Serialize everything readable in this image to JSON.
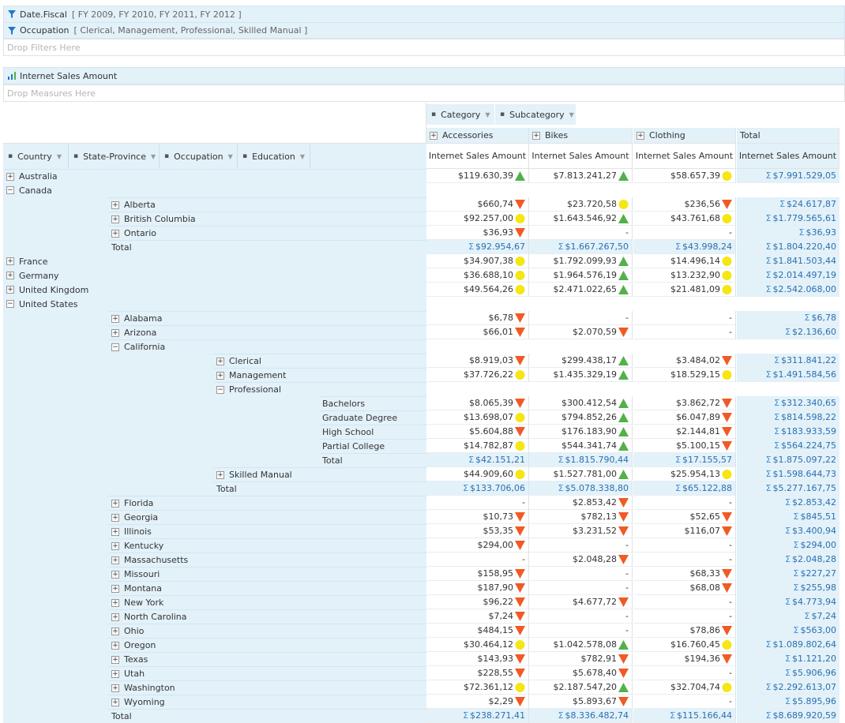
{
  "filters": [
    {
      "name": "Date.Fiscal",
      "values": "[ FY 2009, FY 2010, FY 2011, FY 2012 ]"
    },
    {
      "name": "Occupation",
      "values": "[ Clerical, Management, Professional, Skilled Manual ]"
    }
  ],
  "drop_filters": "Drop Filters Here",
  "measure": "Internet Sales Amount",
  "drop_measures": "Drop Measures Here",
  "column_fields": [
    "Category",
    "Subcategory"
  ],
  "row_fields": [
    "Country",
    "State-Province",
    "Occupation",
    "Education"
  ],
  "categories": [
    "Accessories",
    "Bikes",
    "Clothing",
    "Total"
  ],
  "measure_header": "Internet Sales Amount",
  "colors": {
    "up": "#54b04a",
    "down": "#f15a24",
    "neutral": "#f5e614",
    "header_bg": "#e3f1f9",
    "sigma": "#3c8fd8"
  },
  "rows": [
    {
      "level": 0,
      "label": "Australia",
      "btn": "+",
      "cells": [
        {
          "v": "$119.630,39",
          "i": "up"
        },
        {
          "v": "$7.813.241,27",
          "i": "up"
        },
        {
          "v": "$58.657,39",
          "i": "neutral"
        }
      ],
      "total": "$7.991.529,05"
    },
    {
      "level": 0,
      "label": "Canada",
      "btn": "−",
      "cells": [],
      "skip": true
    },
    {
      "level": 1,
      "label": "Alberta",
      "btn": "+",
      "cells": [
        {
          "v": "$660,74",
          "i": "down"
        },
        {
          "v": "$23.720,58",
          "i": "neutral"
        },
        {
          "v": "$236,56",
          "i": "down"
        }
      ],
      "total": "$24.617,87"
    },
    {
      "level": 1,
      "label": "British Columbia",
      "btn": "+",
      "cells": [
        {
          "v": "$92.257,00",
          "i": "neutral"
        },
        {
          "v": "$1.643.546,92",
          "i": "up"
        },
        {
          "v": "$43.761,68",
          "i": "neutral"
        }
      ],
      "total": "$1.779.565,61"
    },
    {
      "level": 1,
      "label": "Ontario",
      "btn": "+",
      "cells": [
        {
          "v": "$36,93",
          "i": "down"
        },
        {
          "v": "-",
          "i": ""
        },
        {
          "v": "-",
          "i": ""
        }
      ],
      "total": "$36,93"
    },
    {
      "level": 1,
      "label": "Total",
      "btn": "",
      "total_row": true,
      "cells": [
        {
          "v": "$92.954,67",
          "i": ""
        },
        {
          "v": "$1.667.267,50",
          "i": ""
        },
        {
          "v": "$43.998,24",
          "i": ""
        }
      ],
      "total": "$1.804.220,40"
    },
    {
      "level": 0,
      "label": "France",
      "btn": "+",
      "cells": [
        {
          "v": "$34.907,38",
          "i": "neutral"
        },
        {
          "v": "$1.792.099,93",
          "i": "up"
        },
        {
          "v": "$14.496,14",
          "i": "neutral"
        }
      ],
      "total": "$1.841.503,44"
    },
    {
      "level": 0,
      "label": "Germany",
      "btn": "+",
      "cells": [
        {
          "v": "$36.688,10",
          "i": "neutral"
        },
        {
          "v": "$1.964.576,19",
          "i": "up"
        },
        {
          "v": "$13.232,90",
          "i": "neutral"
        }
      ],
      "total": "$2.014.497,19"
    },
    {
      "level": 0,
      "label": "United Kingdom",
      "btn": "+",
      "cells": [
        {
          "v": "$49.564,26",
          "i": "neutral"
        },
        {
          "v": "$2.471.022,65",
          "i": "up"
        },
        {
          "v": "$21.481,09",
          "i": "neutral"
        }
      ],
      "total": "$2.542.068,00"
    },
    {
      "level": 0,
      "label": "United States",
      "btn": "−",
      "cells": [],
      "skip": true
    },
    {
      "level": 1,
      "label": "Alabama",
      "btn": "+",
      "cells": [
        {
          "v": "$6,78",
          "i": "down"
        },
        {
          "v": "-",
          "i": ""
        },
        {
          "v": "-",
          "i": ""
        }
      ],
      "total": "$6,78"
    },
    {
      "level": 1,
      "label": "Arizona",
      "btn": "+",
      "cells": [
        {
          "v": "$66,01",
          "i": "down"
        },
        {
          "v": "$2.070,59",
          "i": "down"
        },
        {
          "v": "-",
          "i": ""
        }
      ],
      "total": "$2.136,60"
    },
    {
      "level": 1,
      "label": "California",
      "btn": "−",
      "cells": [],
      "skip": true
    },
    {
      "level": 2,
      "label": "Clerical",
      "btn": "+",
      "cells": [
        {
          "v": "$8.919,03",
          "i": "down"
        },
        {
          "v": "$299.438,17",
          "i": "up"
        },
        {
          "v": "$3.484,02",
          "i": "down"
        }
      ],
      "total": "$311.841,22"
    },
    {
      "level": 2,
      "label": "Management",
      "btn": "+",
      "cells": [
        {
          "v": "$37.726,22",
          "i": "neutral"
        },
        {
          "v": "$1.435.329,19",
          "i": "up"
        },
        {
          "v": "$18.529,15",
          "i": "neutral"
        }
      ],
      "total": "$1.491.584,56"
    },
    {
      "level": 2,
      "label": "Professional",
      "btn": "−",
      "cells": [],
      "skip": true
    },
    {
      "level": 3,
      "label": "Bachelors",
      "btn": "",
      "cells": [
        {
          "v": "$8.065,39",
          "i": "down"
        },
        {
          "v": "$300.412,54",
          "i": "up"
        },
        {
          "v": "$3.862,72",
          "i": "down"
        }
      ],
      "total": "$312.340,65"
    },
    {
      "level": 3,
      "label": "Graduate Degree",
      "btn": "",
      "cells": [
        {
          "v": "$13.698,07",
          "i": "neutral"
        },
        {
          "v": "$794.852,26",
          "i": "up"
        },
        {
          "v": "$6.047,89",
          "i": "down"
        }
      ],
      "total": "$814.598,22"
    },
    {
      "level": 3,
      "label": "High School",
      "btn": "",
      "cells": [
        {
          "v": "$5.604,88",
          "i": "down"
        },
        {
          "v": "$176.183,90",
          "i": "up"
        },
        {
          "v": "$2.144,81",
          "i": "down"
        }
      ],
      "total": "$183.933,59"
    },
    {
      "level": 3,
      "label": "Partial College",
      "btn": "",
      "cells": [
        {
          "v": "$14.782,87",
          "i": "neutral"
        },
        {
          "v": "$544.341,74",
          "i": "up"
        },
        {
          "v": "$5.100,15",
          "i": "down"
        }
      ],
      "total": "$564.224,75"
    },
    {
      "level": 3,
      "label": "Total",
      "btn": "",
      "total_row": true,
      "cells": [
        {
          "v": "$42.151,21",
          "i": ""
        },
        {
          "v": "$1.815.790,44",
          "i": ""
        },
        {
          "v": "$17.155,57",
          "i": ""
        }
      ],
      "total": "$1.875.097,22"
    },
    {
      "level": 2,
      "label": "Skilled Manual",
      "btn": "+",
      "cells": [
        {
          "v": "$44.909,60",
          "i": "neutral"
        },
        {
          "v": "$1.527.781,00",
          "i": "up"
        },
        {
          "v": "$25.954,13",
          "i": "neutral"
        }
      ],
      "total": "$1.598.644,73"
    },
    {
      "level": 2,
      "label": "Total",
      "btn": "",
      "total_row": true,
      "cells": [
        {
          "v": "$133.706,06",
          "i": ""
        },
        {
          "v": "$5.078.338,80",
          "i": ""
        },
        {
          "v": "$65.122,88",
          "i": ""
        }
      ],
      "total": "$5.277.167,75"
    },
    {
      "level": 1,
      "label": "Florida",
      "btn": "+",
      "cells": [
        {
          "v": "-",
          "i": ""
        },
        {
          "v": "$2.853,42",
          "i": "down"
        },
        {
          "v": "-",
          "i": ""
        }
      ],
      "total": "$2.853,42"
    },
    {
      "level": 1,
      "label": "Georgia",
      "btn": "+",
      "cells": [
        {
          "v": "$10,73",
          "i": "down"
        },
        {
          "v": "$782,13",
          "i": "down"
        },
        {
          "v": "$52,65",
          "i": "down"
        }
      ],
      "total": "$845,51"
    },
    {
      "level": 1,
      "label": "Illinois",
      "btn": "+",
      "cells": [
        {
          "v": "$53,35",
          "i": "down"
        },
        {
          "v": "$3.231,52",
          "i": "down"
        },
        {
          "v": "$116,07",
          "i": "down"
        }
      ],
      "total": "$3.400,94"
    },
    {
      "level": 1,
      "label": "Kentucky",
      "btn": "+",
      "cells": [
        {
          "v": "$294,00",
          "i": "down"
        },
        {
          "v": "-",
          "i": ""
        },
        {
          "v": "-",
          "i": ""
        }
      ],
      "total": "$294,00"
    },
    {
      "level": 1,
      "label": "Massachusetts",
      "btn": "+",
      "cells": [
        {
          "v": "-",
          "i": ""
        },
        {
          "v": "$2.048,28",
          "i": "down"
        },
        {
          "v": "-",
          "i": ""
        }
      ],
      "total": "$2.048,28"
    },
    {
      "level": 1,
      "label": "Missouri",
      "btn": "+",
      "cells": [
        {
          "v": "$158,95",
          "i": "down"
        },
        {
          "v": "-",
          "i": ""
        },
        {
          "v": "$68,33",
          "i": "down"
        }
      ],
      "total": "$227,27"
    },
    {
      "level": 1,
      "label": "Montana",
      "btn": "+",
      "cells": [
        {
          "v": "$187,90",
          "i": "down"
        },
        {
          "v": "-",
          "i": ""
        },
        {
          "v": "$68,08",
          "i": "down"
        }
      ],
      "total": "$255,98"
    },
    {
      "level": 1,
      "label": "New York",
      "btn": "+",
      "cells": [
        {
          "v": "$96,22",
          "i": "down"
        },
        {
          "v": "$4.677,72",
          "i": "down"
        },
        {
          "v": "-",
          "i": ""
        }
      ],
      "total": "$4.773,94"
    },
    {
      "level": 1,
      "label": "North Carolina",
      "btn": "+",
      "cells": [
        {
          "v": "$7,24",
          "i": "down"
        },
        {
          "v": "-",
          "i": ""
        },
        {
          "v": "-",
          "i": ""
        }
      ],
      "total": "$7,24"
    },
    {
      "level": 1,
      "label": "Ohio",
      "btn": "+",
      "cells": [
        {
          "v": "$484,15",
          "i": "down"
        },
        {
          "v": "-",
          "i": ""
        },
        {
          "v": "$78,86",
          "i": "down"
        }
      ],
      "total": "$563,00"
    },
    {
      "level": 1,
      "label": "Oregon",
      "btn": "+",
      "cells": [
        {
          "v": "$30.464,12",
          "i": "neutral"
        },
        {
          "v": "$1.042.578,08",
          "i": "up"
        },
        {
          "v": "$16.760,45",
          "i": "neutral"
        }
      ],
      "total": "$1.089.802,64"
    },
    {
      "level": 1,
      "label": "Texas",
      "btn": "+",
      "cells": [
        {
          "v": "$143,93",
          "i": "down"
        },
        {
          "v": "$782,91",
          "i": "down"
        },
        {
          "v": "$194,36",
          "i": "down"
        }
      ],
      "total": "$1.121,20"
    },
    {
      "level": 1,
      "label": "Utah",
      "btn": "+",
      "cells": [
        {
          "v": "$228,55",
          "i": "down"
        },
        {
          "v": "$5.678,40",
          "i": "down"
        },
        {
          "v": "-",
          "i": ""
        }
      ],
      "total": "$5.906,96"
    },
    {
      "level": 1,
      "label": "Washington",
      "btn": "+",
      "cells": [
        {
          "v": "$72.361,12",
          "i": "neutral"
        },
        {
          "v": "$2.187.547,20",
          "i": "up"
        },
        {
          "v": "$32.704,74",
          "i": "neutral"
        }
      ],
      "total": "$2.292.613,07"
    },
    {
      "level": 1,
      "label": "Wyoming",
      "btn": "+",
      "cells": [
        {
          "v": "$2,29",
          "i": "down"
        },
        {
          "v": "$5.893,67",
          "i": "down"
        },
        {
          "v": "-",
          "i": ""
        }
      ],
      "total": "$5.895,96"
    },
    {
      "level": 1,
      "label": "Total",
      "btn": "",
      "total_row": true,
      "cells": [
        {
          "v": "$238.271,41",
          "i": ""
        },
        {
          "v": "$8.336.482,74",
          "i": ""
        },
        {
          "v": "$115.166,44",
          "i": ""
        }
      ],
      "total": "$8.689.920,59"
    }
  ]
}
